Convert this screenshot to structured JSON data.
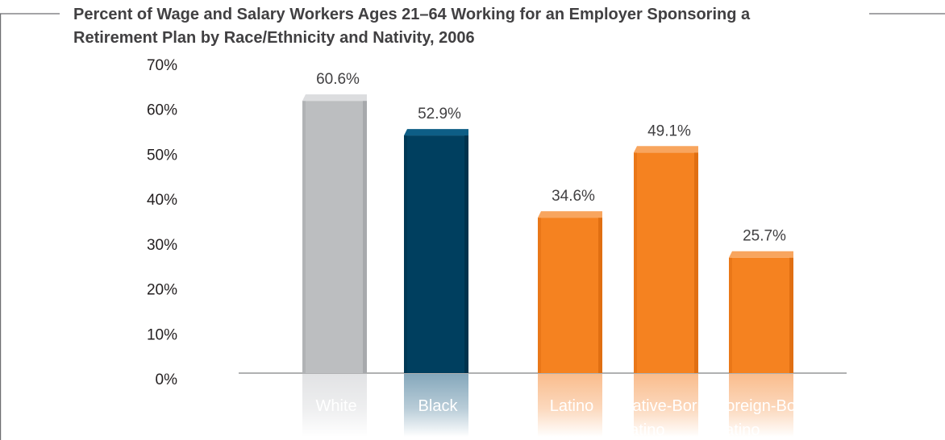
{
  "chart_data": {
    "type": "bar",
    "title_lines": [
      "Percent of Wage and Salary Workers Ages 21–64 Working for an Employer Sponsoring a",
      "Retirement Plan by Race/Ethnicity and Nativity, 2006"
    ],
    "categories": [
      [
        "White"
      ],
      [
        "Black"
      ],
      [
        "Latino"
      ],
      [
        "Native-Born",
        "Latino"
      ],
      [
        "Foreign-Born",
        "Latino"
      ]
    ],
    "values": [
      60.6,
      52.9,
      34.6,
      49.1,
      25.7
    ],
    "value_labels": [
      "60.6%",
      "52.9%",
      "34.6%",
      "49.1%",
      "25.7%"
    ],
    "colors": [
      "#bcbec0",
      "#003f5f",
      "#f58220",
      "#f58220",
      "#f58220"
    ],
    "top_colors": [
      "#dcdddf",
      "#0d5e86",
      "#f8a55e",
      "#f8a55e",
      "#f8a55e"
    ],
    "side_colors": [
      "#a7a9ac",
      "#00334d",
      "#e06f12",
      "#e06f12",
      "#e06f12"
    ],
    "label_fade_colors": [
      "#e0e1e3",
      "#7fa3b8",
      "#f9b987",
      "#f9b987",
      "#f9b987"
    ],
    "y_ticks": [
      "0%",
      "10%",
      "20%",
      "30%",
      "40%",
      "50%",
      "60%",
      "70%"
    ],
    "ylim": [
      0,
      70
    ],
    "xlabel": "",
    "ylabel": "",
    "grid": false,
    "legend": "none"
  }
}
